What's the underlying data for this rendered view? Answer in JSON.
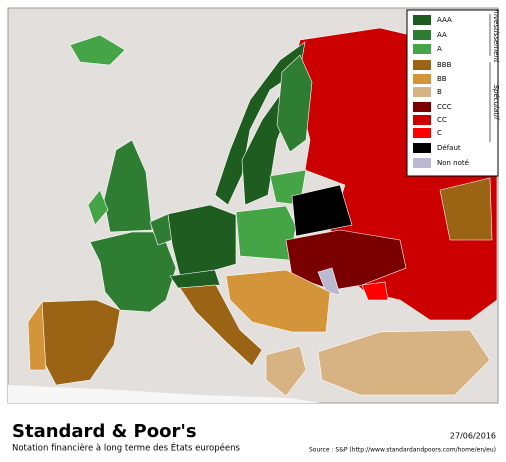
{
  "title": "Standard & Poor's",
  "subtitle": "Notation financière à long terme des États européens",
  "date": "27/06/2016",
  "source": "Source : S&P (http://www.standardandpoors.com/home/en/eu)",
  "legend": {
    "groups": [
      "Investissement",
      "Spéculatif"
    ],
    "items": [
      {
        "label": "AAA",
        "color": "#1f5c1f"
      },
      {
        "label": "AA",
        "color": "#2f7d32"
      },
      {
        "label": "A",
        "color": "#44a446"
      },
      {
        "label": "BBB",
        "color": "#9a6414"
      },
      {
        "label": "BB",
        "color": "#d4953a"
      },
      {
        "label": "B",
        "color": "#d7b282"
      },
      {
        "label": "CCC",
        "color": "#7a0000"
      },
      {
        "label": "CC",
        "color": "#cc0000"
      },
      {
        "label": "C",
        "color": "#ff0000"
      },
      {
        "label": "Défaut",
        "color": "#000000"
      },
      {
        "label": "Non noté",
        "color": "#b9b9d1"
      }
    ]
  }
}
